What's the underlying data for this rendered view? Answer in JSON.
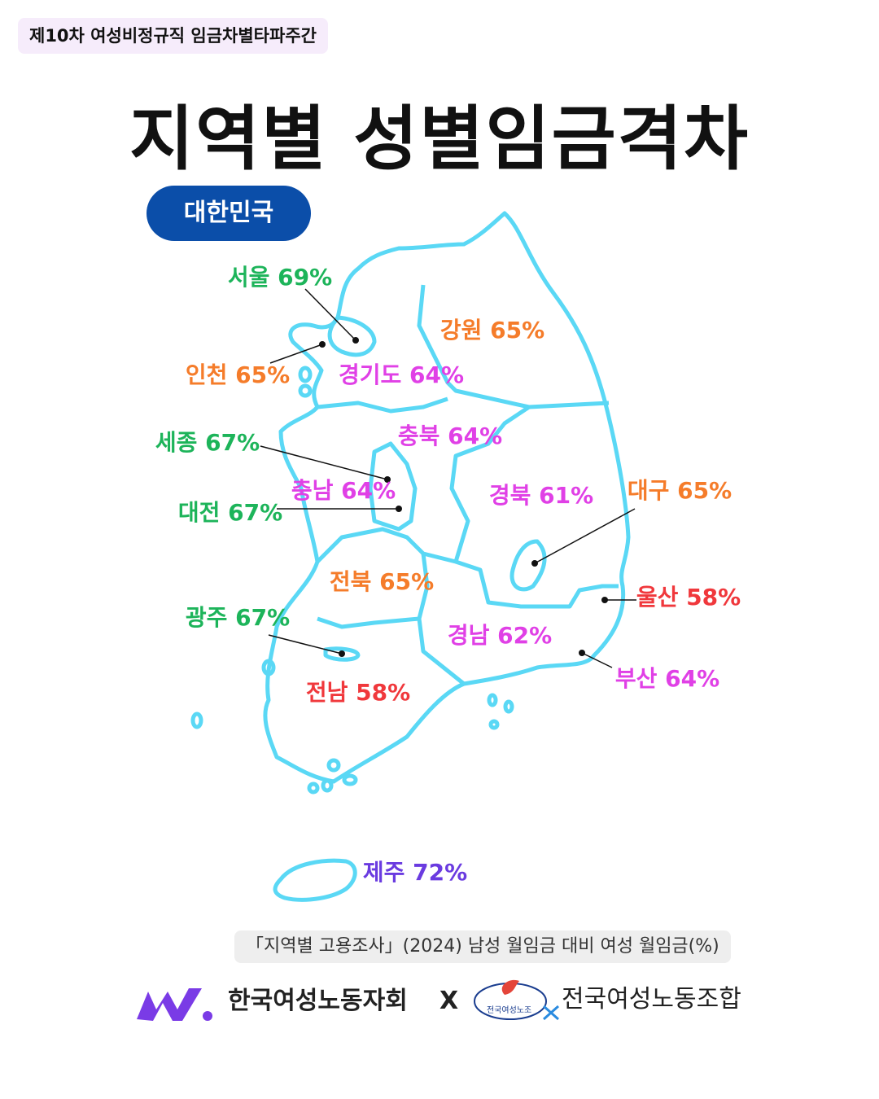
{
  "header": {
    "tag": "제10차 여성비정규직 임금차별타파주간",
    "title": "지역별 성별임금격차",
    "badge": "대한민국"
  },
  "regions": [
    {
      "label": "서울 69%",
      "color": "#1db45a"
    },
    {
      "label": "강원 65%",
      "color": "#f57c2a"
    },
    {
      "label": "인천 65%",
      "color": "#f57c2a"
    },
    {
      "label": "경기도 64%",
      "color": "#e040e6"
    },
    {
      "label": "세종 67%",
      "color": "#1db45a"
    },
    {
      "label": "충북  64%",
      "color": "#e040e6"
    },
    {
      "label": "충남 64%",
      "color": "#e040e6"
    },
    {
      "label": "대전 67%",
      "color": "#1db45a"
    },
    {
      "label": "경북 61%",
      "color": "#e040e6"
    },
    {
      "label": "대구 65%",
      "color": "#f57c2a"
    },
    {
      "label": "울산 58%",
      "color": "#f0383c"
    },
    {
      "label": "전북 65%",
      "color": "#f57c2a"
    },
    {
      "label": "광주 67%",
      "color": "#1db45a"
    },
    {
      "label": "경남 62%",
      "color": "#e040e6"
    },
    {
      "label": "부산 64%",
      "color": "#e040e6"
    },
    {
      "label": "전남 58%",
      "color": "#f0383c"
    },
    {
      "label": "제주 72%",
      "color": "#6a3be0"
    }
  ],
  "source": "「지역별 고용조사」(2024) 남성 월임금 대비 여성 월임금(%)",
  "footer": {
    "org1": "한국여성노동자회",
    "separator": "X",
    "org2_logo_text": "전국여성노조",
    "org2": "전국여성노동조합"
  }
}
